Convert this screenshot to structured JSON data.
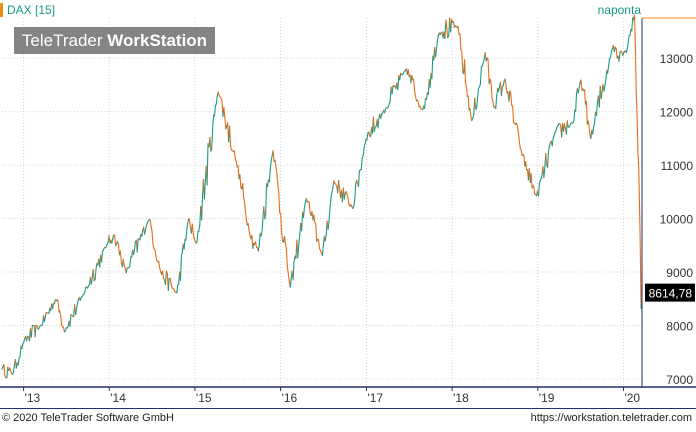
{
  "header": {
    "instrument": "DAX [15]",
    "period": "naponta",
    "brand_plain": "TeleTrader ",
    "brand_bold": "WorkStation"
  },
  "footer": {
    "copyright": "© 2020 TeleTrader Software GmbH",
    "url": "https://workstation.teletrader.com"
  },
  "colors": {
    "up": "#1a9a8a",
    "down": "#f06a10",
    "axis": "#1f2f6f",
    "grid": "#d4d4d4",
    "last_price_bg": "#000000",
    "title_marker": "#f08c10"
  },
  "chart_data": {
    "type": "line",
    "title": "DAX [15]",
    "xlabel": "",
    "ylabel": "",
    "x_ticks": [
      "'13",
      "'14",
      "'15",
      "'16",
      "'17",
      "'18",
      "'19",
      "'20"
    ],
    "y_ticks": [
      7000,
      8000,
      9000,
      10000,
      11000,
      12000,
      13000
    ],
    "ylim": [
      6850,
      13750
    ],
    "xlim": [
      "2012-10-01",
      "2020-03-20"
    ],
    "grid": true,
    "last_price_label": "8614,78",
    "series": [
      {
        "x": [
          "2012-10-01",
          "2012-11-15",
          "2013-01-02",
          "2013-03-15",
          "2013-05-20",
          "2013-06-24",
          "2013-09-15",
          "2013-12-27",
          "2014-01-20",
          "2014-03-14",
          "2014-06-20",
          "2014-08-08",
          "2014-10-16",
          "2014-12-05",
          "2015-01-06",
          "2015-04-10",
          "2015-06-30",
          "2015-08-24",
          "2015-09-28",
          "2015-11-30",
          "2016-02-11",
          "2016-04-20",
          "2016-06-27",
          "2016-08-15",
          "2016-11-04",
          "2016-12-30",
          "2017-03-15",
          "2017-06-20",
          "2017-08-29",
          "2017-11-07",
          "2018-01-23",
          "2018-03-26",
          "2018-05-22",
          "2018-06-28",
          "2018-08-15",
          "2018-10-26",
          "2018-12-27",
          "2019-03-15",
          "2019-05-31",
          "2019-07-04",
          "2019-08-15",
          "2019-11-15",
          "2020-01-06",
          "2020-02-17",
          "2020-02-28",
          "2020-03-09",
          "2020-03-16",
          "2020-03-20"
        ],
        "y": [
          7200,
          7100,
          7700,
          8000,
          8500,
          7900,
          8600,
          9550,
          9700,
          9000,
          10000,
          9000,
          8600,
          10000,
          9500,
          12400,
          11000,
          9700,
          9400,
          11300,
          8700,
          10400,
          9300,
          10700,
          10200,
          11500,
          12000,
          12800,
          12000,
          13500,
          13600,
          11800,
          13100,
          12100,
          12600,
          11200,
          10400,
          11600,
          11800,
          12600,
          11500,
          13200,
          13100,
          13800,
          11900,
          10400,
          8300,
          8614.78
        ]
      }
    ]
  }
}
